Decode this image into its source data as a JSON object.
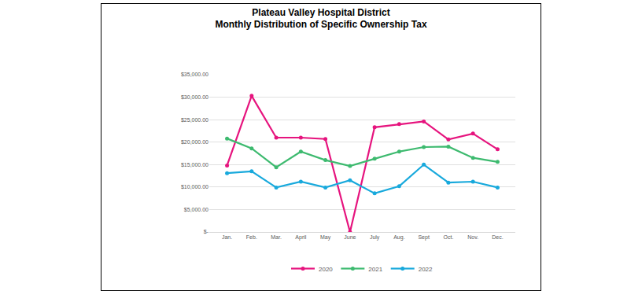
{
  "chart_data": {
    "type": "line",
    "title": "Plateau Valley Hospital District\nMonthly Distribution of Specific Ownership Tax",
    "categories": [
      "Jan.",
      "Feb.",
      "Mar.",
      "April",
      "May",
      "June",
      "July",
      "Aug.",
      "Sept",
      "Oct.",
      "Nov.",
      "Dec."
    ],
    "series": [
      {
        "name": "2020",
        "color": "#e6147e",
        "values": [
          14800,
          30300,
          21000,
          21000,
          20700,
          0,
          23300,
          24000,
          24600,
          20600,
          21900,
          18400
        ]
      },
      {
        "name": "2021",
        "color": "#3dba6f",
        "values": [
          20800,
          18600,
          14400,
          17900,
          16000,
          14700,
          16300,
          17900,
          18900,
          19000,
          16500,
          15600
        ]
      },
      {
        "name": "2022",
        "color": "#18a9dc",
        "values": [
          13100,
          13500,
          9900,
          11200,
          9900,
          11500,
          8600,
          10200,
          15000,
          11000,
          11200,
          9900
        ]
      }
    ],
    "ylim": [
      0,
      35000
    ],
    "yticks": [
      {
        "value": 0,
        "label": "$-"
      },
      {
        "value": 5000,
        "label": "$5,000.00"
      },
      {
        "value": 10000,
        "label": "$10,000.00"
      },
      {
        "value": 15000,
        "label": "$15,000.00"
      },
      {
        "value": 20000,
        "label": "$20,000.00"
      },
      {
        "value": 25000,
        "label": "$25,000.00"
      },
      {
        "value": 30000,
        "label": "$30,000.00"
      },
      {
        "value": 35000,
        "label": "$35,000.00"
      }
    ],
    "grid": true,
    "legend": "bottom",
    "marker": "circle",
    "line_style": "solid"
  }
}
